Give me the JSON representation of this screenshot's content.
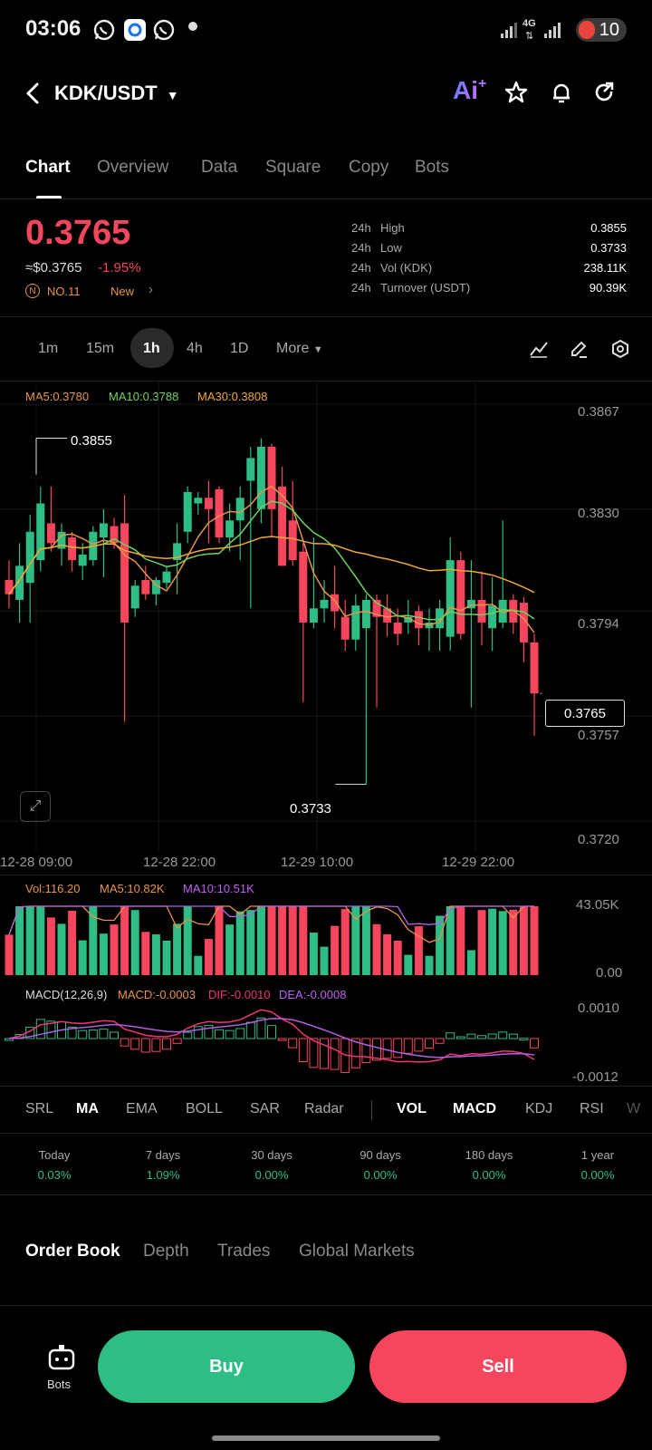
{
  "status_bar": {
    "time": "03:06",
    "network": "4G",
    "battery": "10"
  },
  "header": {
    "pair": "KDK/USDT",
    "ai_label": "Ai"
  },
  "tabs": [
    "Chart",
    "Overview",
    "Data",
    "Square",
    "Copy",
    "Bots"
  ],
  "price": {
    "last": "0.3765",
    "approx": "≈$0.3765",
    "change": "-1.95%",
    "rank": "NO.11",
    "tag": "New"
  },
  "stats": [
    {
      "period": "24h",
      "label": "High",
      "value": "0.3855"
    },
    {
      "period": "24h",
      "label": "Low",
      "value": "0.3733"
    },
    {
      "period": "24h",
      "label": "Vol (KDK)",
      "value": "238.11K"
    },
    {
      "period": "24h",
      "label": "Turnover (USDT)",
      "value": "90.39K"
    }
  ],
  "intervals": [
    "1m",
    "15m",
    "1h",
    "4h",
    "1D",
    "More"
  ],
  "ma_legend": {
    "ma5": "MA5:0.3780",
    "ma10": "MA10:0.3788",
    "ma30": "MA30:0.3808"
  },
  "vol_legend": {
    "vol": "Vol:116.20",
    "ma5": "MA5:10.82K",
    "ma10": "MA10:10.51K"
  },
  "macd_legend": {
    "macd": "MACD(12,26,9)",
    "val": "MACD:-0.0003",
    "dif": "DIF:-0.0010",
    "dea": "DEA:-0.0008"
  },
  "price_axis": [
    "0.3867",
    "0.3830",
    "0.3794",
    "0.3757",
    "0.3720"
  ],
  "time_axis": [
    "12-28 09:00",
    "12-28 22:00",
    "12-29 10:00",
    "12-29 22:00"
  ],
  "vol_axis": [
    "43.05K",
    "0.00"
  ],
  "macd_axis": [
    "0.0010",
    "-0.0012"
  ],
  "annotations": {
    "high": "0.3855",
    "low": "0.3733",
    "current": "0.3765"
  },
  "indicators": [
    "SRL",
    "MA",
    "EMA",
    "BOLL",
    "SAR",
    "Radar",
    "VOL",
    "MACD",
    "KDJ",
    "RSI",
    "W"
  ],
  "performance": [
    {
      "label": "Today",
      "value": "0.03%"
    },
    {
      "label": "7 days",
      "value": "1.09%"
    },
    {
      "label": "30 days",
      "value": "0.00%"
    },
    {
      "label": "90 days",
      "value": "0.00%"
    },
    {
      "label": "180 days",
      "value": "0.00%"
    },
    {
      "label": "1 year",
      "value": "0.00%"
    }
  ],
  "orderbook_tabs": [
    "Order Book",
    "Depth",
    "Trades",
    "Global Markets"
  ],
  "bottom": {
    "bots": "Bots",
    "buy": "Buy",
    "sell": "Sell"
  },
  "colors": {
    "up": "#2ebd85",
    "down": "#f6465d",
    "ma5": "#e8944a",
    "ma10": "#6fd35a",
    "ma30": "#f0a830",
    "dif": "#f0357a",
    "dea": "#b060e0"
  },
  "chart_data": {
    "type": "candlestick",
    "ylim": [
      0.372,
      0.3867
    ],
    "candles": [
      {
        "o": 0.3805,
        "h": 0.3812,
        "l": 0.3795,
        "c": 0.38
      },
      {
        "o": 0.3798,
        "h": 0.3818,
        "l": 0.379,
        "c": 0.381
      },
      {
        "o": 0.3804,
        "h": 0.3828,
        "l": 0.379,
        "c": 0.3822
      },
      {
        "o": 0.3812,
        "h": 0.3838,
        "l": 0.3808,
        "c": 0.3832
      },
      {
        "o": 0.3825,
        "h": 0.3838,
        "l": 0.3815,
        "c": 0.3818
      },
      {
        "o": 0.3816,
        "h": 0.3825,
        "l": 0.381,
        "c": 0.3822
      },
      {
        "o": 0.382,
        "h": 0.3822,
        "l": 0.3808,
        "c": 0.3812
      },
      {
        "o": 0.381,
        "h": 0.3818,
        "l": 0.3805,
        "c": 0.3814
      },
      {
        "o": 0.3812,
        "h": 0.3824,
        "l": 0.381,
        "c": 0.3822
      },
      {
        "o": 0.382,
        "h": 0.383,
        "l": 0.3806,
        "c": 0.3825
      },
      {
        "o": 0.3824,
        "h": 0.3827,
        "l": 0.3816,
        "c": 0.3818
      },
      {
        "o": 0.3825,
        "h": 0.3835,
        "l": 0.3755,
        "c": 0.379
      },
      {
        "o": 0.3795,
        "h": 0.3805,
        "l": 0.3792,
        "c": 0.3803
      },
      {
        "o": 0.3805,
        "h": 0.381,
        "l": 0.3798,
        "c": 0.38
      },
      {
        "o": 0.38,
        "h": 0.3806,
        "l": 0.3796,
        "c": 0.3805
      },
      {
        "o": 0.3804,
        "h": 0.381,
        "l": 0.3802,
        "c": 0.3808
      },
      {
        "o": 0.3812,
        "h": 0.3825,
        "l": 0.38,
        "c": 0.3818
      },
      {
        "o": 0.3822,
        "h": 0.3838,
        "l": 0.3818,
        "c": 0.3836
      },
      {
        "o": 0.3832,
        "h": 0.3836,
        "l": 0.3828,
        "c": 0.3834
      },
      {
        "o": 0.3834,
        "h": 0.384,
        "l": 0.3818,
        "c": 0.383
      },
      {
        "o": 0.3837,
        "h": 0.3838,
        "l": 0.3818,
        "c": 0.382
      },
      {
        "o": 0.382,
        "h": 0.3832,
        "l": 0.3815,
        "c": 0.3826
      },
      {
        "o": 0.3826,
        "h": 0.3838,
        "l": 0.3812,
        "c": 0.3834
      },
      {
        "o": 0.384,
        "h": 0.3852,
        "l": 0.3795,
        "c": 0.3848
      },
      {
        "o": 0.383,
        "h": 0.3855,
        "l": 0.3825,
        "c": 0.3852
      },
      {
        "o": 0.3852,
        "h": 0.3853,
        "l": 0.382,
        "c": 0.383
      },
      {
        "o": 0.3838,
        "h": 0.3845,
        "l": 0.381,
        "c": 0.381
      },
      {
        "o": 0.3826,
        "h": 0.384,
        "l": 0.381,
        "c": 0.3812
      },
      {
        "o": 0.3815,
        "h": 0.3818,
        "l": 0.3762,
        "c": 0.379
      },
      {
        "o": 0.379,
        "h": 0.382,
        "l": 0.3788,
        "c": 0.3795
      },
      {
        "o": 0.3795,
        "h": 0.3805,
        "l": 0.379,
        "c": 0.3798
      },
      {
        "o": 0.38,
        "h": 0.381,
        "l": 0.3788,
        "c": 0.3794
      },
      {
        "o": 0.3792,
        "h": 0.3798,
        "l": 0.378,
        "c": 0.3784
      },
      {
        "o": 0.3784,
        "h": 0.38,
        "l": 0.378,
        "c": 0.3796
      },
      {
        "o": 0.3788,
        "h": 0.38,
        "l": 0.3733,
        "c": 0.3798
      },
      {
        "o": 0.3798,
        "h": 0.38,
        "l": 0.376,
        "c": 0.3792
      },
      {
        "o": 0.3795,
        "h": 0.38,
        "l": 0.3785,
        "c": 0.379
      },
      {
        "o": 0.379,
        "h": 0.3795,
        "l": 0.3782,
        "c": 0.3786
      },
      {
        "o": 0.379,
        "h": 0.3798,
        "l": 0.3786,
        "c": 0.3792
      },
      {
        "o": 0.3794,
        "h": 0.3796,
        "l": 0.3782,
        "c": 0.3788
      },
      {
        "o": 0.3788,
        "h": 0.3795,
        "l": 0.378,
        "c": 0.379
      },
      {
        "o": 0.3788,
        "h": 0.3798,
        "l": 0.378,
        "c": 0.3795
      },
      {
        "o": 0.3785,
        "h": 0.382,
        "l": 0.378,
        "c": 0.3812
      },
      {
        "o": 0.3812,
        "h": 0.3815,
        "l": 0.3784,
        "c": 0.3786
      },
      {
        "o": 0.3795,
        "h": 0.3812,
        "l": 0.376,
        "c": 0.3798
      },
      {
        "o": 0.3798,
        "h": 0.3808,
        "l": 0.3782,
        "c": 0.379
      },
      {
        "o": 0.3788,
        "h": 0.3806,
        "l": 0.378,
        "c": 0.3796
      },
      {
        "o": 0.379,
        "h": 0.3826,
        "l": 0.3788,
        "c": 0.3798
      },
      {
        "o": 0.3798,
        "h": 0.38,
        "l": 0.3786,
        "c": 0.379
      },
      {
        "o": 0.3797,
        "h": 0.3799,
        "l": 0.3776,
        "c": 0.3783
      },
      {
        "o": 0.3783,
        "h": 0.3786,
        "l": 0.375,
        "c": 0.3765
      }
    ]
  }
}
